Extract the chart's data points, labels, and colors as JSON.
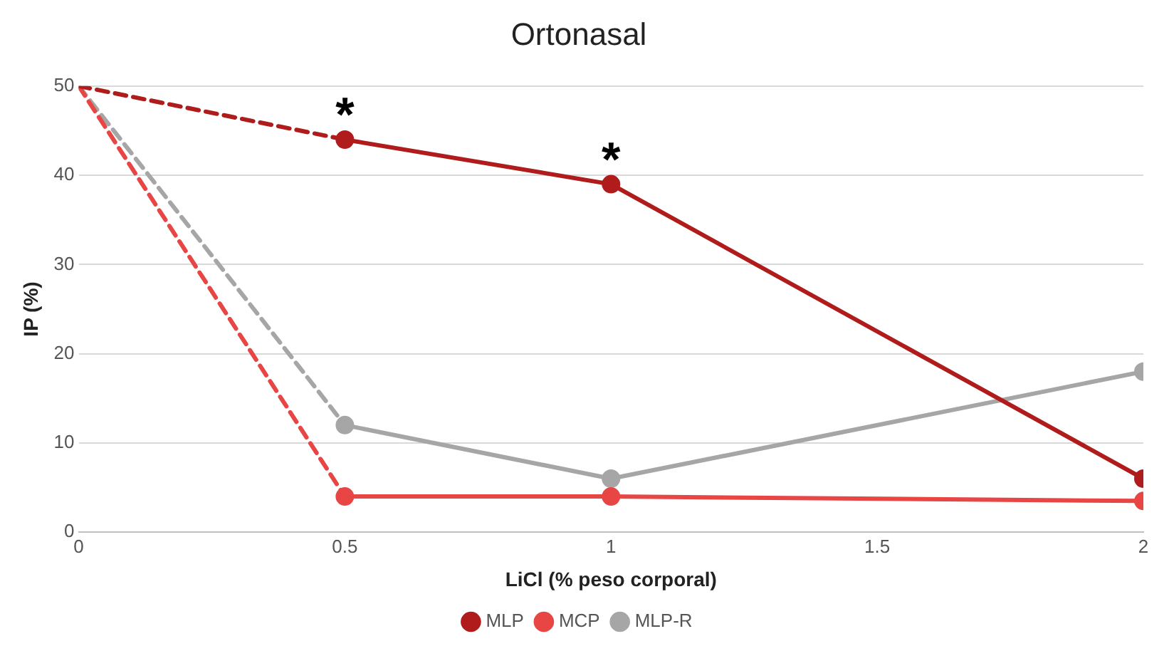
{
  "chart_data": {
    "type": "line",
    "title": "Ortonasal",
    "xlabel": "LiCl (% peso corporal)",
    "ylabel": "IP (%)",
    "xlim": [
      0,
      2
    ],
    "xticks": [
      0,
      0.5,
      1,
      1.5,
      2
    ],
    "ylim": [
      0,
      50
    ],
    "yticks": [
      0,
      10,
      20,
      30,
      40,
      50
    ],
    "grid": "y",
    "legend": "bottom",
    "series": [
      {
        "color": "#b01c1c",
        "x": [
          0,
          0.5
        ],
        "values": [
          50,
          44
        ],
        "line_style": "dashed"
      },
      {
        "color": "#e84545",
        "x": [
          0,
          0.5
        ],
        "values": [
          50,
          4
        ],
        "line_style": "dashed"
      },
      {
        "color": "#a6a6a6",
        "x": [
          0,
          0.5
        ],
        "values": [
          50,
          12
        ],
        "line_style": "dashed"
      },
      {
        "name": "MLP",
        "color": "#b01c1c",
        "x": [
          0.5,
          1,
          2
        ],
        "values": [
          44,
          39,
          6
        ],
        "line_style": "solid",
        "marker": "circle"
      },
      {
        "name": "MCP",
        "color": "#e84545",
        "x": [
          0.5,
          1,
          2
        ],
        "values": [
          4,
          4,
          3.5
        ],
        "line_style": "solid",
        "marker": "circle"
      },
      {
        "name": "MLP-R",
        "color": "#a6a6a6",
        "x": [
          0.5,
          1,
          2
        ],
        "values": [
          12,
          6,
          18
        ],
        "line_style": "solid",
        "marker": "circle"
      }
    ],
    "annotations": [
      {
        "text": "*",
        "x": 0.5,
        "y": 44
      },
      {
        "text": "*",
        "x": 1,
        "y": 39
      }
    ]
  }
}
